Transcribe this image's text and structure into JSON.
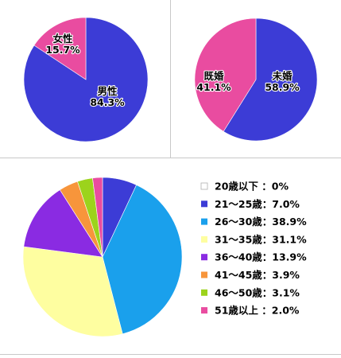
{
  "chart_data": [
    {
      "type": "pie",
      "categories": [
        "男性",
        "女性"
      ],
      "values": [
        84.3,
        15.7
      ],
      "labels": [
        "84.3%",
        "15.7%"
      ],
      "colors": [
        "#3c3cd6",
        "#e94ca0"
      ]
    },
    {
      "type": "pie",
      "categories": [
        "未婚",
        "既婚"
      ],
      "values": [
        58.9,
        41.1
      ],
      "labels": [
        "58.9%",
        "41.1%"
      ],
      "colors": [
        "#3c3cd6",
        "#e94ca0"
      ]
    },
    {
      "type": "pie",
      "categories": [
        "20歳以下",
        "21〜25歳",
        "26〜30歳",
        "31〜35歳",
        "36〜40歳",
        "41〜45歳",
        "46〜50歳",
        "51歳以上"
      ],
      "values": [
        0,
        7.0,
        38.9,
        31.1,
        13.9,
        3.9,
        3.1,
        2.0
      ],
      "legend": [
        "20歳以下 ：0%",
        "21〜25歳：7.0%",
        "26〜30歳：38.9%",
        "31〜35歳：31.1%",
        "36〜40歳：13.9%",
        "41〜45歳：3.9%",
        "46〜50歳：3.1%",
        "51歳以上 ：2.0%"
      ],
      "colors": [
        "#ffffff",
        "#3c3cd6",
        "#1aa0ec",
        "#fefea0",
        "#8a2be2",
        "#f7953b",
        "#9cd31c",
        "#e94ca0"
      ],
      "legend_position": "right"
    }
  ]
}
